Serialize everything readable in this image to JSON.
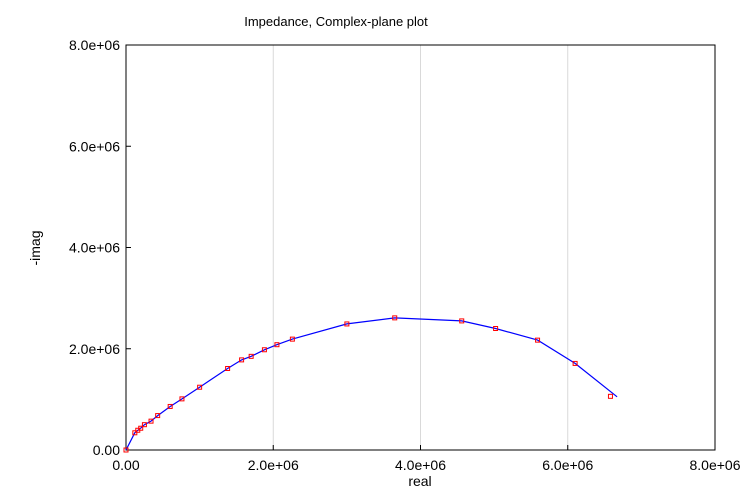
{
  "chart_data": {
    "type": "scatter",
    "title": "Impedance, Complex-plane plot",
    "xlabel": "real",
    "ylabel": "-imag",
    "xlim": [
      0,
      8000000
    ],
    "ylim": [
      0,
      8000000
    ],
    "x_ticks": [
      0,
      2000000,
      4000000,
      6000000,
      8000000
    ],
    "x_tick_labels": [
      "0.00",
      "2.0e+06",
      "4.0e+06",
      "6.0e+06",
      "8.0e+06"
    ],
    "y_ticks": [
      0,
      2000000,
      4000000,
      6000000,
      8000000
    ],
    "y_tick_labels": [
      "0.00",
      "2.0e+06",
      "4.0e+06",
      "6.0e+06",
      "8.0e+06"
    ],
    "grid": true,
    "series": [
      {
        "kind": "markers",
        "color": "#ff0000",
        "points": [
          [
            0,
            0
          ],
          [
            120000,
            340000
          ],
          [
            160000,
            390000
          ],
          [
            200000,
            430000
          ],
          [
            250000,
            500000
          ],
          [
            340000,
            570000
          ],
          [
            430000,
            680000
          ],
          [
            600000,
            860000
          ],
          [
            760000,
            1010000
          ],
          [
            1000000,
            1240000
          ],
          [
            1380000,
            1610000
          ],
          [
            1570000,
            1780000
          ],
          [
            1700000,
            1850000
          ],
          [
            1880000,
            1980000
          ],
          [
            2050000,
            2080000
          ],
          [
            2260000,
            2190000
          ],
          [
            3000000,
            2490000
          ],
          [
            3650000,
            2610000
          ],
          [
            4560000,
            2550000
          ],
          [
            5020000,
            2400000
          ],
          [
            5590000,
            2170000
          ],
          [
            6100000,
            1710000
          ],
          [
            6580000,
            1060000
          ]
        ]
      },
      {
        "kind": "line",
        "color": "#0000ff",
        "points": [
          [
            0,
            0
          ],
          [
            120000,
            340000
          ],
          [
            160000,
            390000
          ],
          [
            200000,
            430000
          ],
          [
            250000,
            500000
          ],
          [
            340000,
            570000
          ],
          [
            430000,
            680000
          ],
          [
            600000,
            860000
          ],
          [
            760000,
            1010000
          ],
          [
            1000000,
            1240000
          ],
          [
            1380000,
            1610000
          ],
          [
            1570000,
            1780000
          ],
          [
            1700000,
            1850000
          ],
          [
            1880000,
            1980000
          ],
          [
            2050000,
            2080000
          ],
          [
            2260000,
            2190000
          ],
          [
            3000000,
            2490000
          ],
          [
            3650000,
            2610000
          ],
          [
            4560000,
            2550000
          ],
          [
            5020000,
            2400000
          ],
          [
            5590000,
            2170000
          ],
          [
            6100000,
            1710000
          ],
          [
            6670000,
            1050000
          ]
        ]
      }
    ]
  }
}
